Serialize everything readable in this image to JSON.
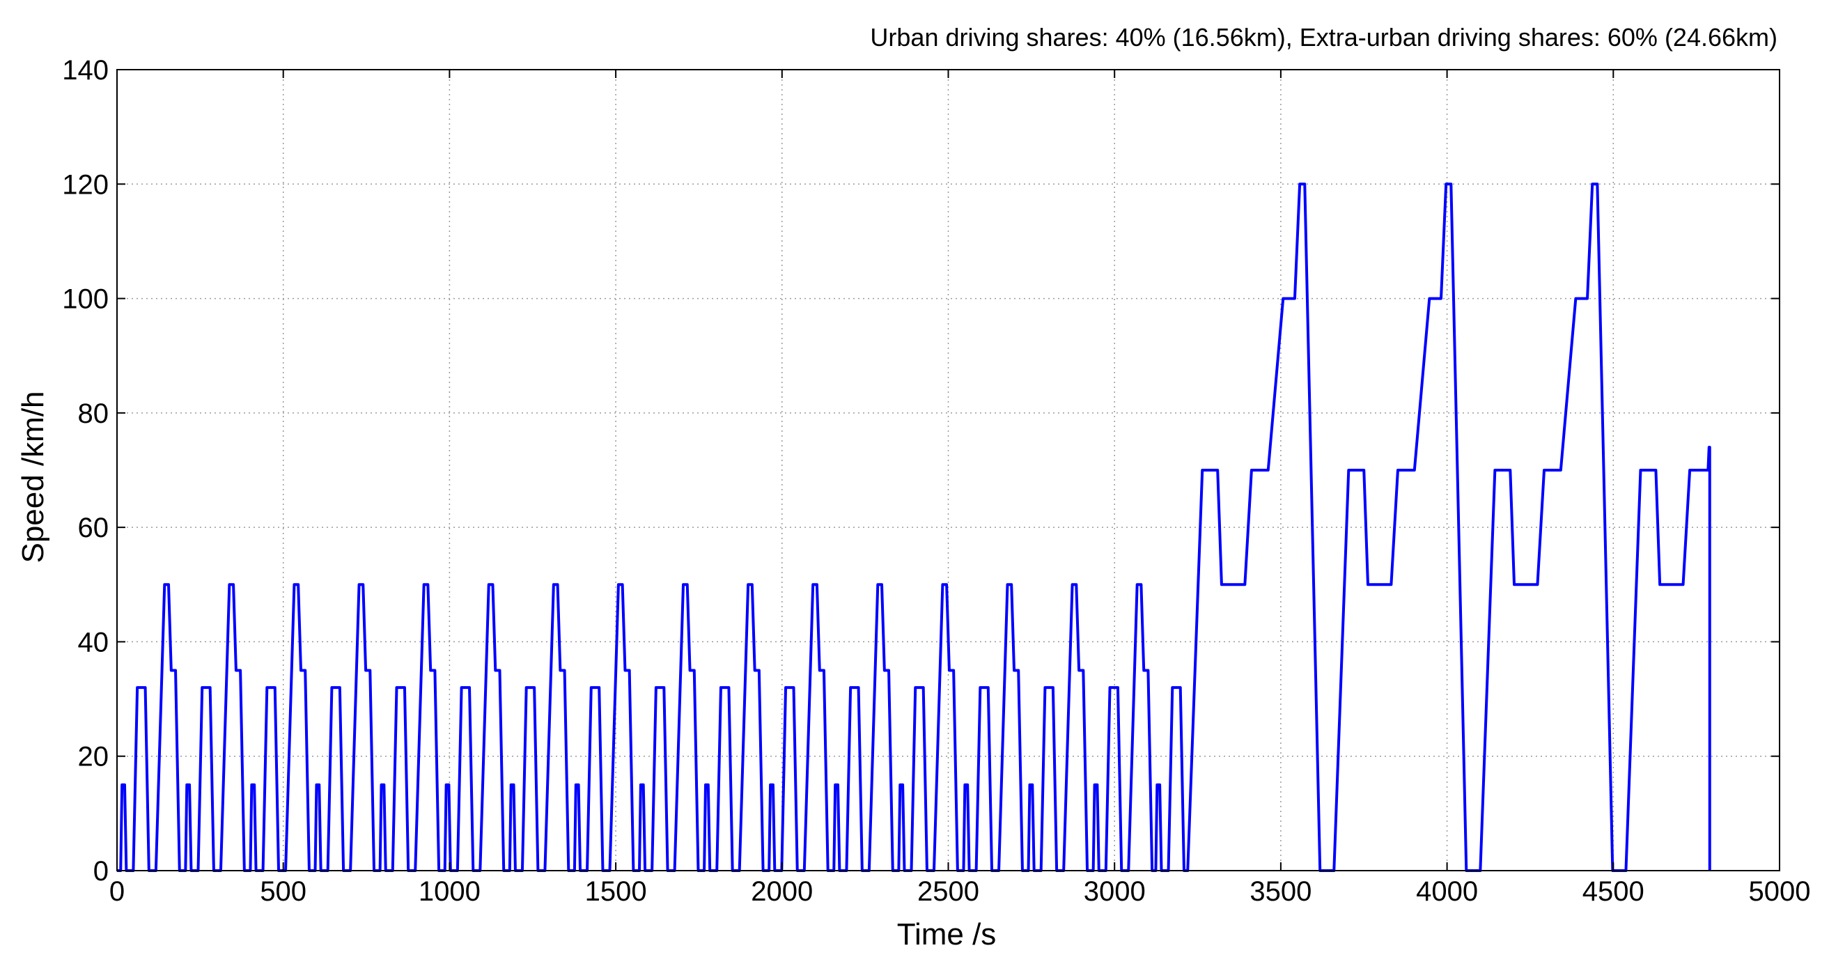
{
  "chart_data": {
    "type": "line",
    "title": "Urban driving shares: 40% (16.56km), Extra-urban driving shares: 60% (24.66km)",
    "xlabel": "Time /s",
    "ylabel": "Speed /km/h",
    "xlim": [
      0,
      5000
    ],
    "ylim": [
      0,
      140
    ],
    "xticks": [
      0,
      500,
      1000,
      1500,
      2000,
      2500,
      3000,
      3500,
      4000,
      4500,
      5000
    ],
    "yticks": [
      0,
      20,
      40,
      60,
      80,
      100,
      120,
      140
    ],
    "xtick_labels": [
      "0",
      "500",
      "1000",
      "1500",
      "2000",
      "2500",
      "3000",
      "3500",
      "4000",
      "4500",
      "5000"
    ],
    "ytick_labels": [
      "0",
      "20",
      "40",
      "60",
      "80",
      "100",
      "120",
      "140"
    ],
    "grid": true,
    "line_color": "#0000ff",
    "series": [
      {
        "urban_cycle": {
          "period_s": 195,
          "repeats": 16,
          "points": [
            [
              0,
              0
            ],
            [
              11,
              0
            ],
            [
              15,
              15
            ],
            [
              23,
              15
            ],
            [
              28,
              0
            ],
            [
              49,
              0
            ],
            [
              61,
              32
            ],
            [
              85,
              32
            ],
            [
              96,
              0
            ],
            [
              117,
              0
            ],
            [
              143,
              50
            ],
            [
              155,
              50
            ],
            [
              163,
              35
            ],
            [
              176,
              35
            ],
            [
              188,
              0
            ],
            [
              195,
              0
            ]
          ]
        },
        "extra_urban": {
          "start_s": 3120,
          "points": [
            [
              3120,
              0
            ],
            [
              3124,
              0
            ],
            [
              3128,
              15
            ],
            [
              3136,
              15
            ],
            [
              3141,
              0
            ],
            [
              3162,
              0
            ],
            [
              3174,
              32
            ],
            [
              3198,
              32
            ],
            [
              3209,
              0
            ],
            [
              3220,
              0
            ],
            [
              3264,
              70
            ],
            [
              3310,
              70
            ],
            [
              3322,
              50
            ],
            [
              3392,
              50
            ],
            [
              3412,
              70
            ],
            [
              3462,
              70
            ],
            [
              3507,
              100
            ],
            [
              3542,
              100
            ],
            [
              3557,
              120
            ],
            [
              3572,
              120
            ],
            [
              3618,
              0
            ],
            [
              3660,
              0
            ],
            [
              3704,
              70
            ],
            [
              3750,
              70
            ],
            [
              3762,
              50
            ],
            [
              3832,
              50
            ],
            [
              3852,
              70
            ],
            [
              3902,
              70
            ],
            [
              3947,
              100
            ],
            [
              3982,
              100
            ],
            [
              3997,
              120
            ],
            [
              4012,
              120
            ],
            [
              4058,
              0
            ],
            [
              4100,
              0
            ],
            [
              4144,
              70
            ],
            [
              4190,
              70
            ],
            [
              4202,
              50
            ],
            [
              4272,
              50
            ],
            [
              4292,
              70
            ],
            [
              4342,
              70
            ],
            [
              4387,
              100
            ],
            [
              4422,
              100
            ],
            [
              4437,
              120
            ],
            [
              4452,
              120
            ],
            [
              4498,
              0
            ],
            [
              4538,
              0
            ],
            [
              4582,
              70
            ],
            [
              4628,
              70
            ],
            [
              4640,
              50
            ],
            [
              4710,
              50
            ],
            [
              4730,
              70
            ],
            [
              4785,
              70
            ],
            [
              4788,
              74
            ],
            [
              4790,
              74
            ],
            [
              4790,
              0
            ]
          ]
        }
      }
    ]
  }
}
